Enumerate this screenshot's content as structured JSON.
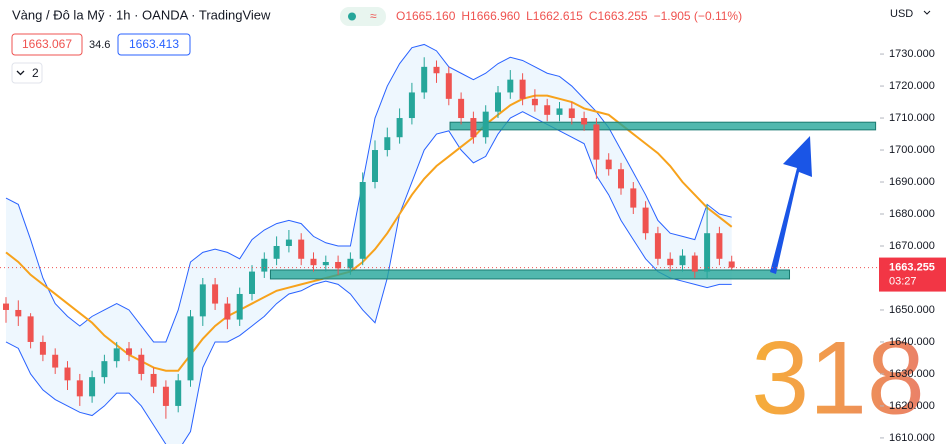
{
  "header": {
    "symbol": "Vàng / Đô la Mỹ · 1h · OANDA · TradingView",
    "ohlc": [
      "O1665.160",
      "H1666.960",
      "L1662.615",
      "C1663.255"
    ],
    "change": "−1.905 (−0.11%)",
    "bid": "1663.067",
    "spread": "34.6",
    "ask": "1663.413",
    "indicators_count": "2",
    "currency": "USD",
    "countdown": "03:27",
    "watermark": "318"
  },
  "chart_data": {
    "type": "candlestick",
    "up_color": "#26a69a",
    "down_color": "#ef5350",
    "open": [
      1652,
      1650,
      1648,
      1640,
      1636,
      1632,
      1628,
      1623,
      1629,
      1634,
      1638,
      1636,
      1630,
      1626,
      1620,
      1628,
      1648,
      1658,
      1652,
      1647,
      1655,
      1662,
      1666,
      1670,
      1672,
      1666,
      1664,
      1665,
      1663,
      1666,
      1690,
      1700,
      1704,
      1710,
      1718,
      1726,
      1724,
      1716,
      1710,
      1704,
      1712,
      1718,
      1722,
      1716,
      1714,
      1711,
      1713,
      1710,
      1708,
      1697,
      1694,
      1688,
      1682,
      1674,
      1666,
      1664,
      1667,
      1662,
      1674,
      1665.16
    ],
    "high": [
      1654,
      1653,
      1649,
      1642,
      1638,
      1634,
      1630,
      1631,
      1636,
      1640,
      1640,
      1638,
      1632,
      1628,
      1630,
      1650,
      1660,
      1660,
      1654,
      1657,
      1664,
      1668,
      1673,
      1675,
      1674,
      1668,
      1667,
      1667,
      1668,
      1693,
      1703,
      1707,
      1713,
      1721,
      1729,
      1728,
      1726,
      1718,
      1712,
      1714,
      1720,
      1725,
      1724,
      1719,
      1716,
      1715,
      1715,
      1712,
      1710,
      1699,
      1696,
      1690,
      1684,
      1676,
      1668,
      1669,
      1668,
      1683,
      1676,
      1666.96
    ],
    "low": [
      1646,
      1645,
      1638,
      1634,
      1630,
      1625,
      1620,
      1621,
      1627,
      1632,
      1634,
      1628,
      1624,
      1616,
      1618,
      1626,
      1645,
      1650,
      1644,
      1645,
      1653,
      1660,
      1664,
      1668,
      1664,
      1662,
      1662,
      1661,
      1661,
      1664,
      1688,
      1698,
      1702,
      1708,
      1716,
      1721,
      1714,
      1708,
      1702,
      1702,
      1710,
      1716,
      1714,
      1712,
      1709,
      1709,
      1708,
      1706,
      1691,
      1692,
      1686,
      1680,
      1672,
      1664,
      1662,
      1662,
      1660,
      1660,
      1664,
      1662.615
    ],
    "close": [
      1650,
      1648,
      1640,
      1636,
      1632,
      1628,
      1623,
      1629,
      1634,
      1638,
      1636,
      1630,
      1626,
      1620,
      1628,
      1648,
      1658,
      1652,
      1647,
      1655,
      1662,
      1666,
      1670,
      1672,
      1666,
      1664,
      1665,
      1663,
      1666,
      1690,
      1700,
      1704,
      1710,
      1718,
      1726,
      1724,
      1716,
      1710,
      1704,
      1712,
      1718,
      1722,
      1716,
      1714,
      1711,
      1713,
      1710,
      1708,
      1697,
      1694,
      1688,
      1682,
      1674,
      1666,
      1664,
      1667,
      1662,
      1674,
      1666,
      1663.255
    ],
    "ma": {
      "color": "#f7a21b",
      "values": [
        1668,
        1665,
        1661,
        1658,
        1655,
        1652,
        1649,
        1646,
        1642,
        1639,
        1636,
        1634,
        1632,
        1631,
        1631,
        1636,
        1641,
        1645,
        1648,
        1650,
        1652,
        1654,
        1656,
        1657,
        1658,
        1659,
        1660,
        1661,
        1662,
        1665,
        1669,
        1674,
        1680,
        1686,
        1691,
        1695,
        1698,
        1701,
        1704,
        1708,
        1711,
        1714,
        1716,
        1717,
        1717,
        1716,
        1715,
        1713,
        1712,
        1711,
        1708,
        1705,
        1702,
        1699,
        1695,
        1690,
        1686,
        1682,
        1679,
        1676
      ]
    },
    "bollinger": {
      "color": "#2962ff",
      "upper": [
        1685,
        1683,
        1672,
        1660,
        1652,
        1648,
        1645,
        1648,
        1650,
        1652,
        1650,
        1645,
        1640,
        1640,
        1650,
        1665,
        1668,
        1669,
        1668,
        1666,
        1672,
        1675,
        1677,
        1678,
        1677,
        1673,
        1671,
        1670,
        1670,
        1690,
        1710,
        1720,
        1727,
        1732,
        1733,
        1731,
        1726,
        1724,
        1722,
        1724,
        1727,
        1729,
        1728,
        1726,
        1724,
        1723,
        1720,
        1716,
        1712,
        1707,
        1700,
        1693,
        1686,
        1678,
        1674,
        1673,
        1672,
        1683,
        1680,
        1679
      ],
      "lower": [
        1640,
        1638,
        1630,
        1625,
        1622,
        1620,
        1618,
        1617,
        1620,
        1624,
        1624,
        1620,
        1614,
        1608,
        1606,
        1612,
        1632,
        1640,
        1640,
        1642,
        1645,
        1648,
        1652,
        1655,
        1656,
        1658,
        1659,
        1658,
        1655,
        1650,
        1646,
        1660,
        1680,
        1690,
        1700,
        1705,
        1706,
        1700,
        1696,
        1698,
        1705,
        1710,
        1712,
        1710,
        1708,
        1706,
        1704,
        1702,
        1692,
        1686,
        1678,
        1672,
        1666,
        1662,
        1660,
        1659,
        1658,
        1657,
        1658,
        1658
      ]
    },
    "zones": [
      {
        "x": [
          36.1,
          70.7
        ],
        "y": [
          1706.3,
          1708.7
        ],
        "color": "#26a69a"
      },
      {
        "x": [
          21.5,
          63.7
        ],
        "y": [
          1659.7,
          1662.5
        ],
        "color": "#26a69a"
      }
    ],
    "ylim": [
      1608.1,
      1746.9
    ],
    "yticks": [
      {
        "value": 1610,
        "label": "1610.000"
      },
      {
        "value": 1620,
        "label": "1620.000"
      },
      {
        "value": 1630,
        "label": "1630.000"
      },
      {
        "value": 1640,
        "label": "1640.000"
      },
      {
        "value": 1650,
        "label": "1650.000"
      },
      {
        "value": 1660,
        "label": "1660.000"
      },
      {
        "value": 1670,
        "label": "1670.000"
      },
      {
        "value": 1680,
        "label": "1680.000"
      },
      {
        "value": 1690,
        "label": "1690.000"
      },
      {
        "value": 1700,
        "label": "1700.000"
      },
      {
        "value": 1710,
        "label": "1710.000"
      },
      {
        "value": 1720,
        "label": "1720.000"
      },
      {
        "value": 1730,
        "label": "1730.000"
      }
    ]
  }
}
